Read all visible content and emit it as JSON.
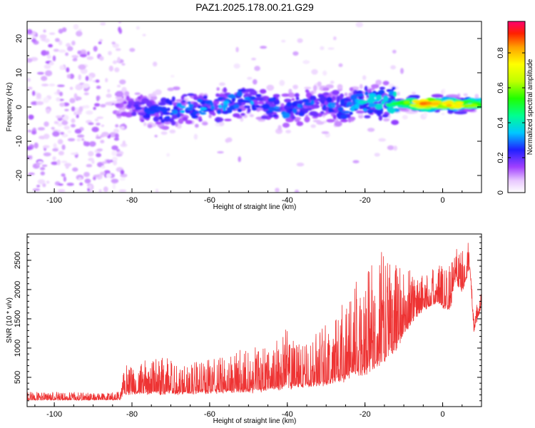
{
  "title": "PAZ1.2025.178.00.21.G29",
  "chart_data": [
    {
      "type": "heatmap",
      "xlabel": "Height of straight line (km)",
      "ylabel": "Frequency (Hz)",
      "xlim": [
        -107,
        10
      ],
      "ylim": [
        -25,
        25
      ],
      "xticks": [
        -100,
        -80,
        -60,
        -40,
        -20,
        0
      ],
      "yticks": [
        -20,
        -10,
        0,
        10,
        20
      ],
      "colorbar": {
        "label": "Normalized spectral amplitude",
        "range": [
          0,
          0.98
        ],
        "ticks": [
          0,
          0.2,
          0.4,
          0.6,
          0.8
        ]
      },
      "ridge": [
        {
          "x": -107,
          "y": 1.5
        },
        {
          "x": -100,
          "y": 2
        },
        {
          "x": -90,
          "y": 0.5
        },
        {
          "x": -80,
          "y": 0
        },
        {
          "x": -75,
          "y": -1.5
        },
        {
          "x": -70,
          "y": -1
        },
        {
          "x": -65,
          "y": 0
        },
        {
          "x": -60,
          "y": -0.5
        },
        {
          "x": -55,
          "y": 1
        },
        {
          "x": -50,
          "y": 2.5
        },
        {
          "x": -45,
          "y": 0.5
        },
        {
          "x": -40,
          "y": -1.5
        },
        {
          "x": -35,
          "y": 0.5
        },
        {
          "x": -30,
          "y": 1
        },
        {
          "x": -25,
          "y": -0.5
        },
        {
          "x": -20,
          "y": 1.5
        },
        {
          "x": -15,
          "y": 1.2
        },
        {
          "x": -10,
          "y": 1
        },
        {
          "x": -5,
          "y": 1
        },
        {
          "x": 0,
          "y": 0.8
        },
        {
          "x": 5,
          "y": 0.5
        },
        {
          "x": 10,
          "y": 1
        }
      ],
      "peak_amplitude": [
        {
          "x": -107,
          "v": 0.12
        },
        {
          "x": -82,
          "v": 0.18
        },
        {
          "x": -70,
          "v": 0.35
        },
        {
          "x": -50,
          "v": 0.35
        },
        {
          "x": -30,
          "v": 0.3
        },
        {
          "x": -15,
          "v": 0.45
        },
        {
          "x": -10,
          "v": 0.6
        },
        {
          "x": -5,
          "v": 0.92
        },
        {
          "x": 0,
          "v": 0.85
        },
        {
          "x": 5,
          "v": 0.8
        },
        {
          "x": 10,
          "v": 0.55
        }
      ]
    },
    {
      "type": "line",
      "xlabel": "Height of straight line (km)",
      "ylabel": "SNR (10 * v/v)",
      "xlim": [
        -107,
        10
      ],
      "ylim": [
        0,
        2950
      ],
      "xticks": [
        -100,
        -80,
        -60,
        -40,
        -20,
        0
      ],
      "yticks": [
        500,
        1000,
        1500,
        2000,
        2500
      ],
      "series": [
        {
          "color": "#ee3333",
          "envelope": [
            {
              "x": -107,
              "base": 120,
              "amp": 140
            },
            {
              "x": -83,
              "base": 120,
              "amp": 130
            },
            {
              "x": -82,
              "base": 250,
              "amp": 480
            },
            {
              "x": -75,
              "base": 260,
              "amp": 550
            },
            {
              "x": -72,
              "base": 270,
              "amp": 800
            },
            {
              "x": -70,
              "base": 250,
              "amp": 550
            },
            {
              "x": -60,
              "base": 270,
              "amp": 550
            },
            {
              "x": -52,
              "base": 300,
              "amp": 700
            },
            {
              "x": -49,
              "base": 320,
              "amp": 900
            },
            {
              "x": -45,
              "base": 330,
              "amp": 700
            },
            {
              "x": -40,
              "base": 380,
              "amp": 1000
            },
            {
              "x": -35,
              "base": 400,
              "amp": 700
            },
            {
              "x": -30,
              "base": 450,
              "amp": 1000
            },
            {
              "x": -25,
              "base": 550,
              "amp": 1400
            },
            {
              "x": -20,
              "base": 700,
              "amp": 1700
            },
            {
              "x": -15,
              "base": 900,
              "amp": 1900
            },
            {
              "x": -12,
              "base": 1100,
              "amp": 1500
            },
            {
              "x": -8,
              "base": 1500,
              "amp": 900
            },
            {
              "x": -5,
              "base": 1700,
              "amp": 600
            },
            {
              "x": -2,
              "base": 1800,
              "amp": 600
            },
            {
              "x": 2,
              "base": 1700,
              "amp": 900
            },
            {
              "x": 3,
              "base": 2200,
              "amp": 600
            },
            {
              "x": 5,
              "base": 2000,
              "amp": 700
            },
            {
              "x": 7,
              "base": 2400,
              "amp": 550
            },
            {
              "x": 8,
              "base": 1300,
              "amp": 300
            },
            {
              "x": 9,
              "base": 1500,
              "amp": 300
            },
            {
              "x": 10,
              "base": 1750,
              "amp": 200
            }
          ]
        }
      ]
    }
  ]
}
